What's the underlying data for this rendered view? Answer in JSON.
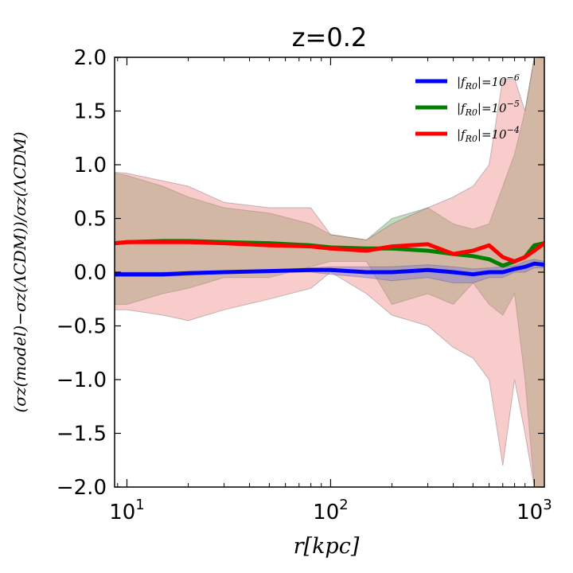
{
  "chart_data": {
    "type": "line",
    "title": "z=0.2",
    "xlabel": "r[kpc]",
    "ylabel": "(σz(model)−σz(ΛCDM))/σz(ΛCDM)",
    "xscale": "log",
    "xlim": [
      8.7,
      1120
    ],
    "ylim": [
      -2.0,
      2.0
    ],
    "x_ticks": [
      {
        "value": 10,
        "base": "10",
        "exp": "1"
      },
      {
        "value": 100,
        "base": "10",
        "exp": "2"
      },
      {
        "value": 1000,
        "base": "10",
        "exp": "3"
      }
    ],
    "y_ticks": [
      {
        "value": 2.0,
        "label": "2.0"
      },
      {
        "value": 1.5,
        "label": "1.5"
      },
      {
        "value": 1.0,
        "label": "1.0"
      },
      {
        "value": 0.5,
        "label": "0.5"
      },
      {
        "value": 0.0,
        "label": "0.0"
      },
      {
        "value": -0.5,
        "label": "−0.5"
      },
      {
        "value": -1.0,
        "label": "−1.0"
      },
      {
        "value": -1.5,
        "label": "−1.5"
      },
      {
        "value": -2.0,
        "label": "−2.0"
      }
    ],
    "legend_position": "top-right",
    "series": [
      {
        "name": "|fR0|=10^-6",
        "legend": {
          "prefix": "|f",
          "sub": "R0",
          "mid": "|=10",
          "sup": "−6"
        },
        "color": "#0000ff",
        "band_color": "#6f6fe0",
        "x": [
          8.7,
          10,
          15,
          20,
          30,
          50,
          80,
          100,
          150,
          200,
          300,
          400,
          500,
          600,
          700,
          800,
          900,
          1000,
          1120
        ],
        "y": [
          -0.02,
          -0.02,
          -0.02,
          -0.01,
          0.0,
          0.01,
          0.02,
          0.02,
          0.0,
          0.0,
          0.02,
          0.0,
          -0.02,
          0.0,
          0.0,
          0.03,
          0.05,
          0.08,
          0.07
        ],
        "upper": [
          0.0,
          0.0,
          0.0,
          0.0,
          0.01,
          0.02,
          0.04,
          0.05,
          0.05,
          0.05,
          0.07,
          0.05,
          0.03,
          0.04,
          0.05,
          0.06,
          0.1,
          0.12,
          0.1
        ],
        "lower": [
          -0.04,
          -0.04,
          -0.04,
          -0.03,
          -0.01,
          0.0,
          0.0,
          -0.02,
          -0.05,
          -0.08,
          -0.05,
          -0.1,
          -0.1,
          -0.05,
          -0.05,
          0.0,
          0.0,
          0.04,
          0.04
        ]
      },
      {
        "name": "|fR0|=10^-5",
        "legend": {
          "prefix": "|f",
          "sub": "R0",
          "mid": "|=10",
          "sup": "−5"
        },
        "color": "#007f00",
        "band_color": "#5fa85f",
        "x": [
          8.7,
          10,
          15,
          20,
          30,
          50,
          80,
          100,
          150,
          200,
          300,
          400,
          500,
          600,
          700,
          800,
          900,
          1000,
          1120
        ],
        "y": [
          0.27,
          0.28,
          0.29,
          0.29,
          0.28,
          0.27,
          0.25,
          0.23,
          0.22,
          0.22,
          0.2,
          0.17,
          0.15,
          0.12,
          0.06,
          0.1,
          0.14,
          0.25,
          0.27
        ],
        "upper": [
          0.92,
          0.9,
          0.8,
          0.7,
          0.6,
          0.55,
          0.45,
          0.35,
          0.3,
          0.5,
          0.6,
          0.45,
          0.4,
          0.45,
          0.8,
          1.1,
          1.5,
          2.0,
          2.0
        ],
        "lower": [
          -0.3,
          -0.3,
          -0.2,
          -0.15,
          -0.05,
          -0.05,
          0.05,
          0.1,
          0.1,
          -0.3,
          -0.2,
          -0.3,
          -0.1,
          -0.3,
          -0.4,
          -0.2,
          -1.0,
          -2.0,
          -2.0
        ]
      },
      {
        "name": "|fR0|=10^-4",
        "legend": {
          "prefix": "|f",
          "sub": "R0",
          "mid": "|=10",
          "sup": "−4"
        },
        "color": "#ff0000",
        "band_color": "#f08080",
        "x": [
          8.7,
          10,
          15,
          20,
          30,
          50,
          80,
          100,
          150,
          200,
          300,
          400,
          500,
          600,
          700,
          800,
          900,
          1000,
          1120
        ],
        "y": [
          0.27,
          0.28,
          0.28,
          0.28,
          0.27,
          0.25,
          0.24,
          0.22,
          0.2,
          0.24,
          0.26,
          0.17,
          0.2,
          0.25,
          0.14,
          0.1,
          0.14,
          0.2,
          0.27
        ],
        "upper": [
          0.93,
          0.92,
          0.85,
          0.8,
          0.65,
          0.6,
          0.6,
          0.35,
          0.3,
          0.45,
          0.6,
          0.7,
          0.8,
          1.0,
          1.8,
          1.8,
          1.5,
          2.0,
          2.0
        ],
        "lower": [
          -0.35,
          -0.35,
          -0.4,
          -0.45,
          -0.35,
          -0.25,
          -0.15,
          0.0,
          -0.2,
          -0.4,
          -0.5,
          -0.7,
          -0.8,
          -1.0,
          -1.8,
          -1.0,
          -1.5,
          -2.0,
          -2.0
        ]
      }
    ]
  }
}
